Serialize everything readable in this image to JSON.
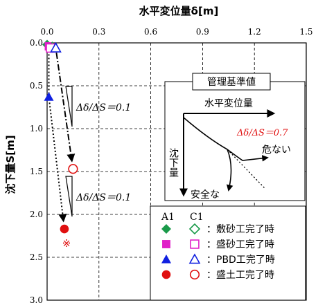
{
  "chart_data": {
    "type": "scatter",
    "xlabel": "水平変位量δ[m]",
    "ylabel": "沈下量S[m]",
    "xlim": [
      0,
      1.5
    ],
    "ylim": [
      0,
      3.0
    ],
    "y_inverted": true,
    "x_axis_position": "top",
    "grid": true,
    "x_ticks": [
      "0.0",
      "0.3",
      "0.6",
      "0.9",
      "1.2",
      "1.5"
    ],
    "y_ticks": [
      "0.0",
      "0.5",
      "1.0",
      "1.5",
      "2.0",
      "2.5",
      "3.0"
    ],
    "series": [
      {
        "name": "A1",
        "filled": true,
        "line_style": "dotted",
        "points": [
          {
            "stage": "敷砂工完了時",
            "marker": "diamond",
            "color": "#1a9a4a",
            "x": 0.0,
            "y": 0.02
          },
          {
            "stage": "盛砂工完了時",
            "marker": "square",
            "color": "#e020c8",
            "x": 0.01,
            "y": 0.04
          },
          {
            "stage": "PBD工完了時",
            "marker": "triangle",
            "color": "#1020e0",
            "x": 0.01,
            "y": 0.63
          },
          {
            "stage": "盛土工完了時",
            "marker": "circle",
            "color": "#e01010",
            "x": 0.1,
            "y": 2.17
          }
        ]
      },
      {
        "name": "C1",
        "filled": false,
        "line_style": "dash-dot",
        "points": [
          {
            "stage": "敷砂工完了時",
            "marker": "diamond",
            "color": "#1a9a4a",
            "x": 0.03,
            "y": 0.05
          },
          {
            "stage": "盛砂工完了時",
            "marker": "square",
            "color": "#e020c8",
            "x": 0.02,
            "y": 0.06
          },
          {
            "stage": "PBD工完了時",
            "marker": "triangle",
            "color": "#1020e0",
            "x": 0.05,
            "y": 0.06
          },
          {
            "stage": "盛土工完了時",
            "marker": "circle",
            "color": "#e01010",
            "x": 0.15,
            "y": 1.47
          }
        ]
      }
    ],
    "annotations": [
      {
        "text": "Δδ/ΔS＝0.1",
        "near": "C1 line"
      },
      {
        "text": "Δδ/ΔS＝0.1",
        "near": "A1 line"
      },
      {
        "text": "※",
        "color": "#e01010",
        "near": "A1 盛土工完了時"
      }
    ],
    "inset": {
      "title": "管理基準値",
      "x_label": "水平変位量",
      "y_label": "沈下量",
      "ratio_label": "Δδ/ΔS＝0.7",
      "ratio_color": "#e01010",
      "danger_label": "危ない",
      "safe_label": "安全な"
    },
    "legend": {
      "position": "bottom-right",
      "headers": [
        "A1",
        "C1"
      ],
      "entries": [
        {
          "marker": "diamond",
          "color": "#1a9a4a",
          "label": "：敷砂工完了時"
        },
        {
          "marker": "square",
          "color": "#e020c8",
          "label": "：盛砂工完了時"
        },
        {
          "marker": "triangle",
          "color": "#1020e0",
          "label": "：PBD工完了時"
        },
        {
          "marker": "circle",
          "color": "#e01010",
          "label": "：盛土工完了時"
        }
      ]
    }
  }
}
